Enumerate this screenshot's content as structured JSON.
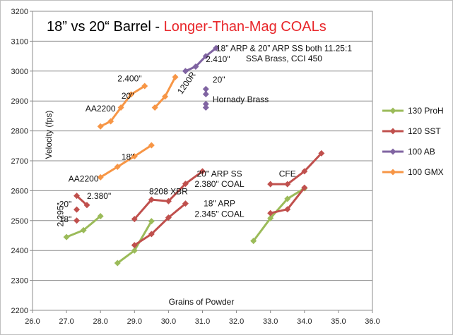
{
  "chart_data": {
    "type": "line",
    "title": "18” vs 20“ Barrel",
    "title_separator": " - ",
    "title_highlight": "Longer-Than-Mag COALs",
    "title_highlight_color": "#e8262a",
    "xlabel": "Grains of Powder",
    "ylabel": "Velocity (fps)",
    "xlim": [
      26.0,
      36.0
    ],
    "ylim": [
      2200,
      3200
    ],
    "x_ticks": [
      "26.0",
      "27.0",
      "28.0",
      "29.0",
      "30.0",
      "31.0",
      "32.0",
      "33.0",
      "34.0",
      "35.0",
      "36.0"
    ],
    "y_ticks": [
      "2200",
      "2300",
      "2400",
      "2500",
      "2600",
      "2700",
      "2800",
      "2900",
      "3000",
      "3100",
      "3200"
    ],
    "grid": "horizontal",
    "legend_position": "right",
    "series": [
      {
        "name": "130 ProH",
        "color": "#9bbb59",
        "marker": "diamond",
        "segments": [
          [
            [
              27.0,
              2445
            ],
            [
              27.5,
              2468
            ],
            [
              28.0,
              2515
            ]
          ],
          [
            [
              28.5,
              2358
            ],
            [
              29.0,
              2400
            ],
            [
              29.5,
              2498
            ]
          ],
          [
            [
              32.5,
              2432
            ],
            [
              33.0,
              2508
            ],
            [
              33.5,
              2573
            ],
            [
              34.0,
              2608
            ]
          ]
        ]
      },
      {
        "name": "120 SST",
        "color": "#c0504d",
        "marker": "diamond",
        "segments": [
          [
            [
              27.3,
              2500
            ]
          ],
          [
            [
              27.3,
              2537
            ]
          ],
          [
            [
              27.3,
              2583
            ],
            [
              27.6,
              2552
            ]
          ],
          [
            [
              29.0,
              2418
            ],
            [
              29.5,
              2455
            ],
            [
              30.0,
              2510
            ],
            [
              30.5,
              2557
            ]
          ],
          [
            [
              29.0,
              2505
            ],
            [
              29.5,
              2570
            ],
            [
              30.0,
              2565
            ],
            [
              30.5,
              2623
            ],
            [
              31.0,
              2665
            ]
          ],
          [
            [
              33.0,
              2525
            ],
            [
              33.5,
              2538
            ],
            [
              34.0,
              2610
            ]
          ],
          [
            [
              33.0,
              2622
            ],
            [
              33.5,
              2622
            ],
            [
              34.0,
              2665
            ],
            [
              34.5,
              2725
            ]
          ]
        ]
      },
      {
        "name": "100 AB",
        "color": "#8064a2",
        "marker": "diamond",
        "segments": [
          [
            [
              30.5,
              3000
            ],
            [
              30.8,
              3015
            ],
            [
              31.1,
              3050
            ],
            [
              31.4,
              3077
            ]
          ],
          [
            [
              31.1,
              2940
            ],
            [
              31.1,
              2923
            ]
          ],
          [
            [
              31.1,
              2890
            ],
            [
              31.1,
              2878
            ]
          ]
        ]
      },
      {
        "name": "100 GMX",
        "color": "#f79646",
        "marker": "diamond",
        "segments": [
          [
            [
              28.0,
              2645
            ],
            [
              28.5,
              2680
            ],
            [
              29.0,
              2715
            ],
            [
              29.5,
              2752
            ]
          ],
          [
            [
              28.0,
              2815
            ],
            [
              28.3,
              2832
            ],
            [
              28.6,
              2878
            ],
            [
              28.9,
              2922
            ],
            [
              29.3,
              2950
            ]
          ],
          [
            [
              29.6,
              2878
            ],
            [
              29.9,
              2915
            ],
            [
              30.2,
              2980
            ]
          ]
        ]
      }
    ],
    "annotations": [
      {
        "text": "18” ARP & 20” ARP SS both 11.25:1",
        "x": 33.4,
        "y": 3067,
        "anchor": "middle",
        "rotate": 0
      },
      {
        "text": "SSA Brass, CCI 450",
        "x": 33.4,
        "y": 3033,
        "anchor": "middle",
        "rotate": 0
      },
      {
        "text": "2.410\"",
        "x": 31.1,
        "y": 3030,
        "anchor": "start",
        "rotate": 0
      },
      {
        "text": "20\"",
        "x": 31.3,
        "y": 2962,
        "anchor": "start",
        "rotate": 0
      },
      {
        "text": "1200R",
        "x": 30.6,
        "y": 2955,
        "anchor": "middle",
        "rotate": -55
      },
      {
        "text": "Hornady Brass",
        "x": 31.3,
        "y": 2896,
        "anchor": "start",
        "rotate": 0
      },
      {
        "text": "2.400\"",
        "x": 28.5,
        "y": 2965,
        "anchor": "start",
        "rotate": 0
      },
      {
        "text": "20\"",
        "x": 28.8,
        "y": 2908,
        "anchor": "middle",
        "rotate": 0
      },
      {
        "text": "AA2200",
        "x": 28.0,
        "y": 2865,
        "anchor": "middle",
        "rotate": 0
      },
      {
        "text": "18\"",
        "x": 28.8,
        "y": 2703,
        "anchor": "middle",
        "rotate": 0
      },
      {
        "text": "AA2200",
        "x": 27.5,
        "y": 2630,
        "anchor": "middle",
        "rotate": 0
      },
      {
        "text": "20\"",
        "x": 27.15,
        "y": 2545,
        "anchor": "end",
        "rotate": 0
      },
      {
        "text": "2.380\"",
        "x": 27.6,
        "y": 2573,
        "anchor": "start",
        "rotate": 0
      },
      {
        "text": "18\"",
        "x": 27.15,
        "y": 2495,
        "anchor": "end",
        "rotate": 0
      },
      {
        "text": "2.295\"",
        "x": 26.9,
        "y": 2520,
        "anchor": "middle",
        "rotate": -90
      },
      {
        "text": "8208 XBR",
        "x": 30.0,
        "y": 2588,
        "anchor": "middle",
        "rotate": 0
      },
      {
        "text": "20\" ARP SS",
        "x": 31.5,
        "y": 2647,
        "anchor": "middle",
        "rotate": 0
      },
      {
        "text": "2.380\" COAL",
        "x": 31.5,
        "y": 2613,
        "anchor": "middle",
        "rotate": 0
      },
      {
        "text": "CFE",
        "x": 33.5,
        "y": 2647,
        "anchor": "middle",
        "rotate": 0
      },
      {
        "text": "18\" ARP",
        "x": 31.5,
        "y": 2548,
        "anchor": "middle",
        "rotate": 0
      },
      {
        "text": "2.345\" COAL",
        "x": 31.5,
        "y": 2513,
        "anchor": "middle",
        "rotate": 0
      }
    ]
  }
}
